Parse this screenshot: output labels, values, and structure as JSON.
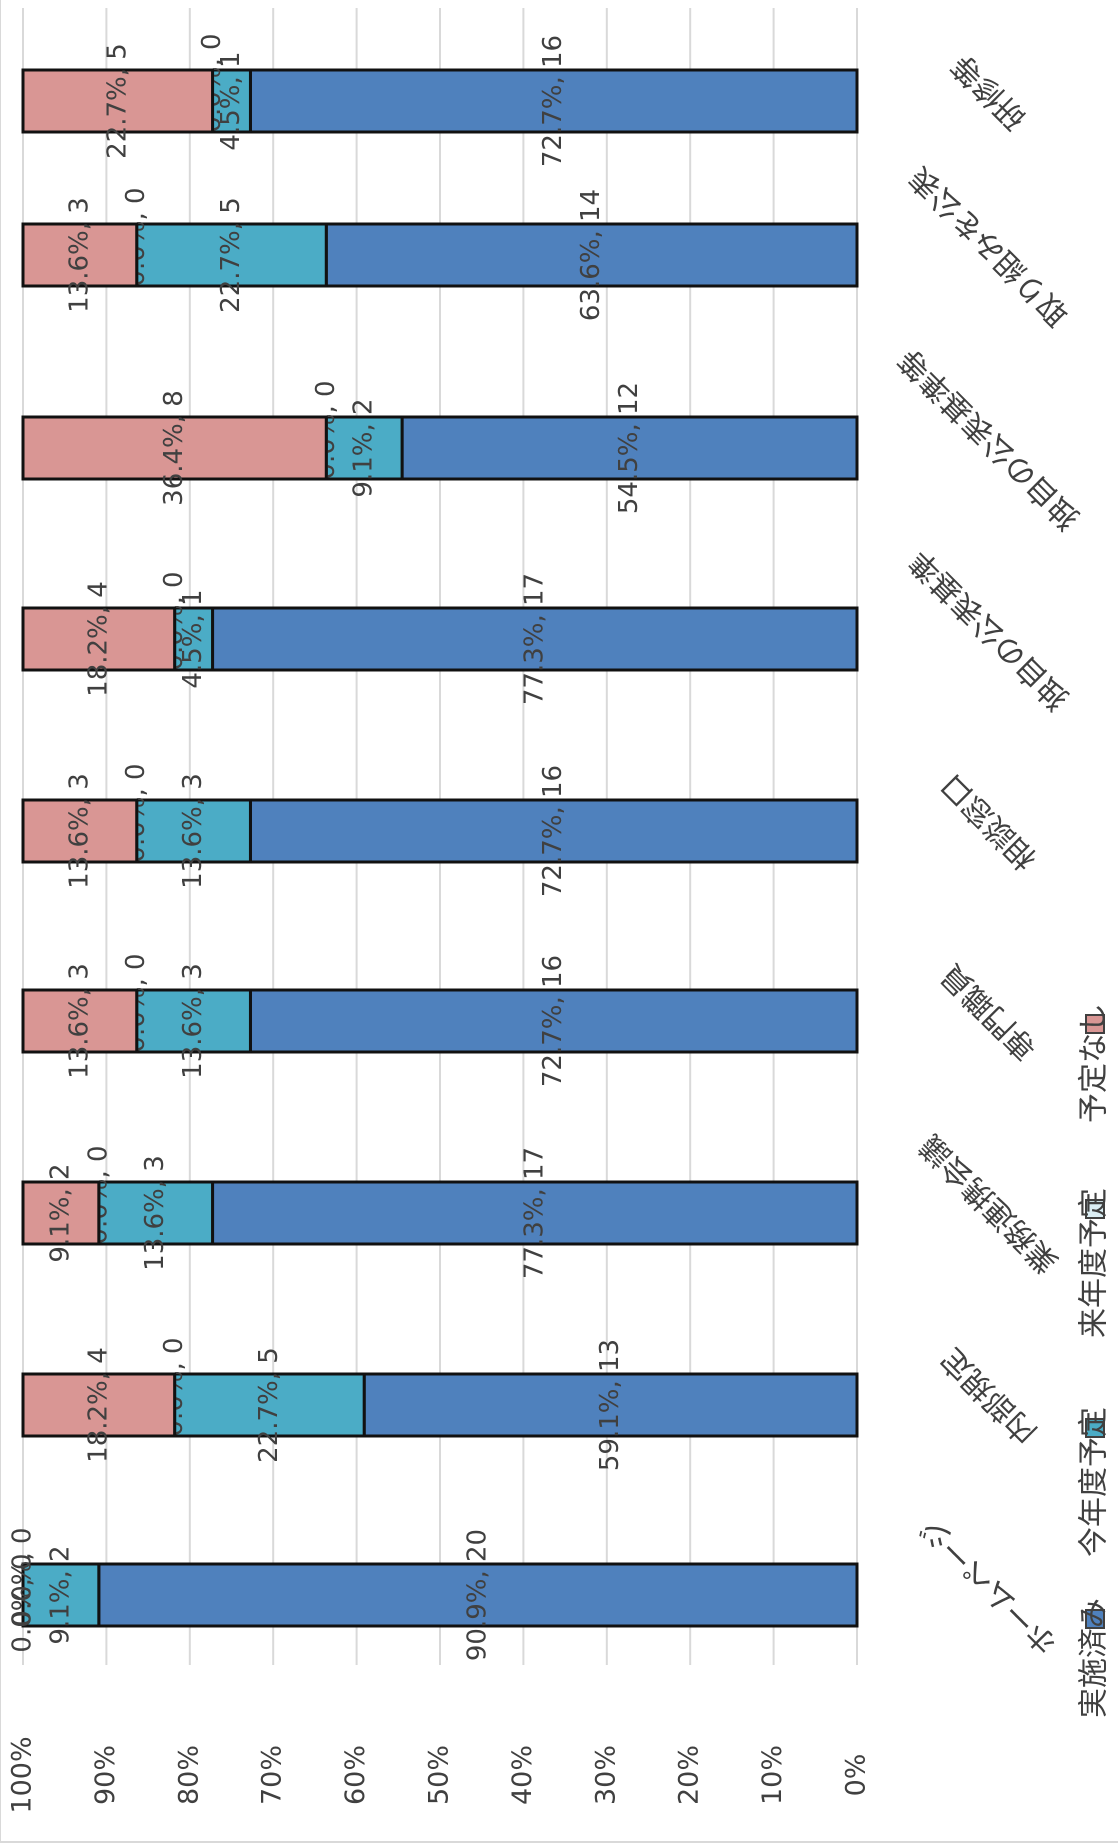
{
  "chart_data": {
    "type": "bar",
    "stacked": true,
    "percent": true,
    "orientation": "vertical-rotated",
    "categories": [
      "ホームページ",
      "内部規定",
      "業務連携会議",
      "専門職員",
      "相談窓口",
      "独自の公表基準",
      "独自の公表基準等",
      "取り組みを公表",
      "研修等"
    ],
    "series": [
      {
        "name": "実施済み",
        "color": "#4f81bd",
        "values": [
          20,
          13,
          17,
          16,
          16,
          17,
          12,
          14,
          16
        ],
        "pct": [
          "90.9%",
          "59.1%",
          "77.3%",
          "72.7%",
          "72.7%",
          "77.3%",
          "54.5%",
          "63.6%",
          "72.7%"
        ]
      },
      {
        "name": "今年度予定",
        "color": "#4bacc6",
        "values": [
          2,
          5,
          3,
          3,
          3,
          1,
          2,
          5,
          1
        ],
        "pct": [
          "9.1%",
          "22.7%",
          "13.6%",
          "13.6%",
          "13.6%",
          "4.5%",
          "9.1%",
          "22.7%",
          "4.5%"
        ]
      },
      {
        "name": "来年度予定",
        "color": "#dbeef4",
        "values": [
          0,
          0,
          0,
          0,
          0,
          0,
          0,
          0,
          0
        ],
        "pct": [
          "0.0%",
          "0.0%",
          "0.0%",
          "0.0%",
          "0.0%",
          "0.0%",
          "0.0%",
          "0.0%",
          "0.0%"
        ]
      },
      {
        "name": "予定なし",
        "color": "#d99694",
        "values": [
          0,
          4,
          2,
          3,
          3,
          4,
          8,
          3,
          5
        ],
        "pct": [
          "0.0%",
          "18.2%",
          "9.1%",
          "13.6%",
          "13.6%",
          "18.2%",
          "36.4%",
          "13.6%",
          "22.7%"
        ]
      }
    ],
    "ylim": [
      0,
      100
    ],
    "yticks": [
      "0%",
      "10%",
      "20%",
      "30%",
      "40%",
      "50%",
      "60%",
      "70%",
      "80%",
      "90%",
      "100%"
    ],
    "grid": true,
    "legend_position": "bottom"
  }
}
